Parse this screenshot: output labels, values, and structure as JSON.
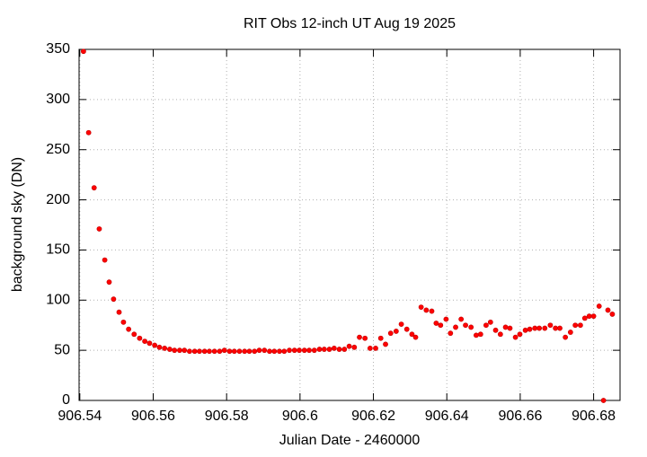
{
  "chart_data": {
    "type": "scatter",
    "title": "RIT Obs 12-inch UT Aug 19 2025",
    "x_label": "Julian Date - 2460000",
    "y_label": "background sky (DN)",
    "xlim": [
      906.5398,
      906.6872
    ],
    "ylim": [
      0,
      350
    ],
    "xticks": [
      906.54,
      906.56,
      906.58,
      906.6,
      906.62,
      906.64,
      906.66,
      906.68
    ],
    "yticks": [
      0,
      50,
      100,
      150,
      200,
      250,
      300,
      350
    ],
    "grid": true,
    "series": [
      {
        "color": "#ff0000",
        "x": [
          906.541,
          906.5424,
          906.5439,
          906.5453,
          906.5468,
          906.548,
          906.5492,
          906.5507,
          906.5519,
          906.5533,
          906.5548,
          906.5563,
          906.5577,
          906.559,
          906.5604,
          906.5617,
          906.5631,
          906.5645,
          906.5658,
          906.5672,
          906.5685,
          906.5699,
          906.5713,
          906.5726,
          906.574,
          906.5753,
          906.5767,
          906.5781,
          906.5794,
          906.5808,
          906.5821,
          906.5835,
          906.5849,
          906.5862,
          906.5876,
          906.5889,
          906.5903,
          906.5917,
          906.593,
          906.5944,
          906.5957,
          906.5971,
          906.5985,
          906.5998,
          906.6012,
          906.6025,
          906.6039,
          906.6053,
          906.6066,
          906.608,
          906.6093,
          906.6107,
          906.6121,
          906.6134,
          906.6148,
          906.6162,
          906.6177,
          906.6191,
          906.6206,
          906.622,
          906.6233,
          906.6247,
          906.6262,
          906.6276,
          906.6291,
          906.6305,
          906.6315,
          906.633,
          906.6344,
          906.6359,
          906.6371,
          906.6383,
          906.6398,
          906.641,
          906.6424,
          906.6439,
          906.6451,
          906.6466,
          906.648,
          906.6492,
          906.6507,
          906.6519,
          906.6533,
          906.6546,
          906.656,
          906.6572,
          906.6587,
          906.6599,
          906.6614,
          906.6626,
          906.664,
          906.6652,
          906.6667,
          906.6682,
          906.6696,
          906.6708,
          906.6723,
          906.6737,
          906.675,
          906.6764,
          906.6776,
          906.6788,
          906.68,
          906.6815,
          906.6827,
          906.6839,
          906.6851
        ],
        "values": [
          348,
          267,
          212,
          171,
          140,
          118,
          101,
          88,
          78,
          71,
          66,
          62,
          59,
          57,
          55,
          53,
          52,
          51,
          50,
          50,
          50,
          49,
          49,
          49,
          49,
          49,
          49,
          49,
          50,
          49,
          49,
          49,
          49,
          49,
          49,
          50,
          50,
          49,
          49,
          49,
          49,
          50,
          50,
          50,
          50,
          50,
          50,
          51,
          51,
          51,
          52,
          51,
          51,
          54,
          53,
          63,
          62,
          52,
          52,
          62,
          56,
          67,
          69,
          76,
          71,
          66,
          63,
          93,
          90,
          89,
          77,
          75,
          81,
          67,
          73,
          81,
          75,
          73,
          65,
          66,
          75,
          78,
          70,
          66,
          73,
          72,
          63,
          66,
          70,
          71,
          72,
          72,
          72,
          75,
          72,
          72,
          63,
          68,
          75,
          75,
          82,
          84,
          84,
          94,
          0,
          90,
          86
        ]
      }
    ]
  }
}
